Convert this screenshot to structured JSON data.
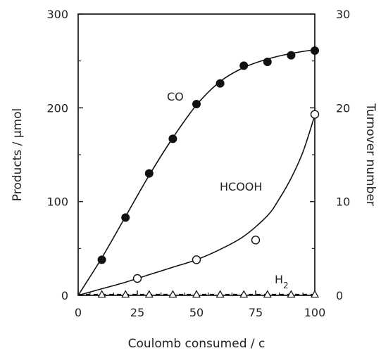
{
  "chart_data": {
    "type": "scatter",
    "xlabel": "Coulomb consumed / c",
    "ylabel": "Products / μmol",
    "y2label": "Turnover  number",
    "xlim": [
      0,
      100
    ],
    "ylim": [
      0,
      300
    ],
    "y2lim": [
      0,
      30
    ],
    "xticks": [
      "0",
      "25",
      "50",
      "75",
      "100"
    ],
    "yticks": [
      "0",
      "100",
      "200",
      "300"
    ],
    "y2ticks": [
      "0",
      "10",
      "20",
      "30"
    ],
    "grid": false,
    "series": [
      {
        "name": "CO",
        "marker": "filled-circle",
        "x": [
          10,
          20,
          30,
          40,
          50,
          60,
          70,
          80,
          90,
          100
        ],
        "y": [
          38,
          83,
          130,
          167,
          204,
          226,
          245,
          249,
          256,
          261
        ],
        "curve_x": [
          0,
          10,
          20,
          30,
          40,
          50,
          60,
          70,
          80,
          90,
          100
        ],
        "curve_y": [
          0,
          40,
          84,
          128,
          168,
          203,
          228,
          243,
          252,
          258,
          262
        ]
      },
      {
        "name": "HCOOH",
        "marker": "open-circle",
        "x": [
          25,
          50,
          75,
          100
        ],
        "y": [
          18,
          38,
          59,
          193
        ],
        "curve_x": [
          0,
          10,
          20,
          30,
          40,
          50,
          60,
          70,
          80,
          85,
          90,
          95,
          100
        ],
        "curve_y": [
          0,
          7,
          14,
          22,
          30,
          38,
          49,
          63,
          85,
          103,
          125,
          153,
          192
        ]
      },
      {
        "name": "H",
        "name_subscript": "2",
        "marker": "open-triangle",
        "x": [
          10,
          20,
          30,
          40,
          50,
          60,
          70,
          80,
          90,
          100
        ],
        "y": [
          1,
          1,
          1,
          1,
          1,
          1,
          1,
          1,
          1,
          1
        ],
        "curve_x": [
          0,
          100
        ],
        "curve_y": [
          1,
          1
        ]
      }
    ]
  }
}
